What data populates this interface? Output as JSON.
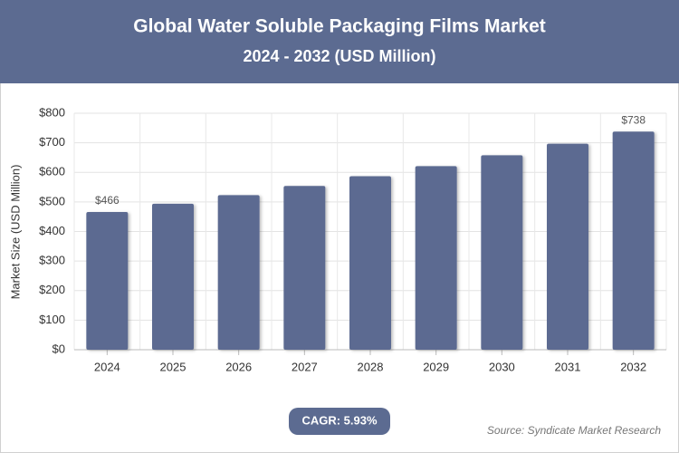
{
  "chart_data": {
    "type": "bar",
    "title": "Global Water Soluble Packaging Films Market",
    "subtitle": "2024 - 2032 (USD Million)",
    "y_label": "Market Size (USD Million)",
    "categories": [
      "2024",
      "2025",
      "2026",
      "2027",
      "2028",
      "2029",
      "2030",
      "2031",
      "2032"
    ],
    "values": [
      466,
      494,
      523,
      554,
      587,
      621,
      658,
      697,
      738
    ],
    "value_labels": [
      "$466",
      null,
      null,
      null,
      null,
      null,
      null,
      null,
      "$738"
    ],
    "color": "#5c6b91",
    "ylim": [
      0,
      800
    ],
    "yticks": [
      {
        "value": 0,
        "label": "$0"
      },
      {
        "value": 100,
        "label": "$100"
      },
      {
        "value": 200,
        "label": "$200"
      },
      {
        "value": 300,
        "label": "$300"
      },
      {
        "value": 400,
        "label": "$400"
      },
      {
        "value": 500,
        "label": "$500"
      },
      {
        "value": 600,
        "label": "$600"
      },
      {
        "value": 700,
        "label": "$700"
      },
      {
        "value": 800,
        "label": "$800"
      }
    ],
    "grid": true,
    "cagr": "CAGR: 5.93%",
    "source": "Source: Syndicate Market Research"
  }
}
